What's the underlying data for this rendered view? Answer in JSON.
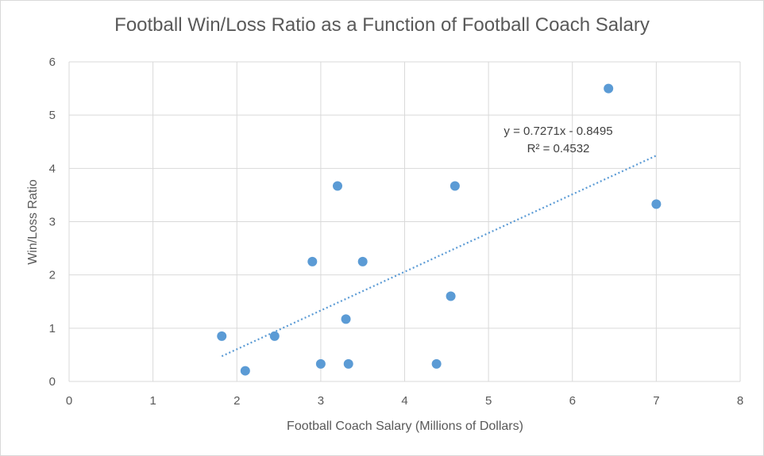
{
  "chart_data": {
    "type": "scatter",
    "title": "Football Win/Loss Ratio as a Function of Football Coach Salary",
    "xlabel": "Football Coach Salary (Millions of Dollars)",
    "ylabel": "Win/Loss Ratio",
    "xlim": [
      0,
      8
    ],
    "ylim": [
      0,
      6
    ],
    "xticks": [
      "0",
      "1",
      "2",
      "3",
      "4",
      "5",
      "6",
      "7",
      "8"
    ],
    "yticks": [
      "0",
      "1",
      "2",
      "3",
      "4",
      "5",
      "6"
    ],
    "grid": true,
    "legend": "none",
    "point_color": "#5b9bd5",
    "points": [
      {
        "x": 1.82,
        "y": 0.85
      },
      {
        "x": 2.1,
        "y": 0.2
      },
      {
        "x": 2.45,
        "y": 0.85
      },
      {
        "x": 2.9,
        "y": 2.25
      },
      {
        "x": 3.0,
        "y": 0.33
      },
      {
        "x": 3.2,
        "y": 3.67
      },
      {
        "x": 3.3,
        "y": 1.17
      },
      {
        "x": 3.33,
        "y": 0.33
      },
      {
        "x": 3.5,
        "y": 2.25
      },
      {
        "x": 4.38,
        "y": 0.33
      },
      {
        "x": 4.55,
        "y": 1.6
      },
      {
        "x": 4.6,
        "y": 3.67
      },
      {
        "x": 6.43,
        "y": 5.5
      },
      {
        "x": 7.0,
        "y": 3.33
      }
    ],
    "trendline": {
      "type": "linear",
      "slope": 0.7271,
      "intercept": -0.8495,
      "x_range": [
        1.82,
        7.0
      ],
      "equation": "y = 0.7271x - 0.8495",
      "r_squared": "R² = 0.4532",
      "style": "dotted"
    }
  }
}
